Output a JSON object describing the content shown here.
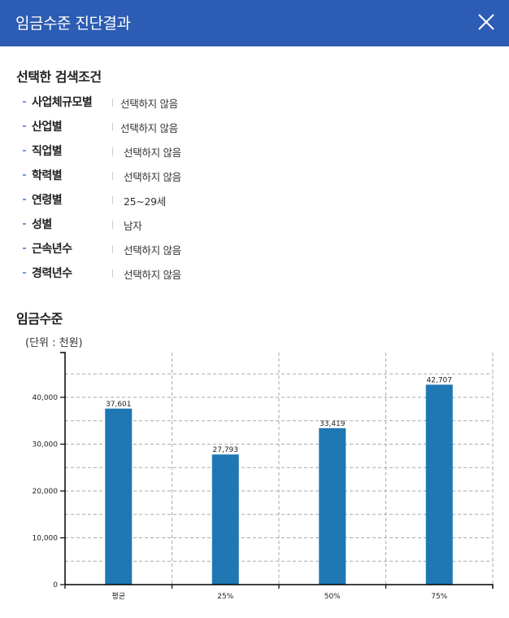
{
  "header": {
    "title": "임금수준 진단결과",
    "close_icon": "close-icon"
  },
  "conditions": {
    "title": "선택한 검색조건",
    "items": [
      {
        "label": "사업체규모별",
        "value": "선택하지 않음"
      },
      {
        "label": "산업별",
        "value": "선택하지 않음"
      },
      {
        "label": "직업별",
        "value": "선택하지 않음"
      },
      {
        "label": "학력별",
        "value": "선택하지 않음"
      },
      {
        "label": "연령별",
        "value": "25~29세"
      },
      {
        "label": "성별",
        "value": "남자"
      },
      {
        "label": "근속년수",
        "value": "선택하지 않음"
      },
      {
        "label": "경력년수",
        "value": "선택하지 않음"
      }
    ]
  },
  "wage": {
    "title": "임금수준",
    "unit": "(단위 : 천원)"
  },
  "colors": {
    "header": "#2c5cb3",
    "bar": "#1f77b4"
  },
  "chart_data": {
    "type": "bar",
    "title": "임금수준",
    "ylabel": "(단위 : 천원)",
    "xlabel": "",
    "categories": [
      "평균",
      "25%",
      "50%",
      "75%"
    ],
    "values": [
      37601,
      27793,
      33419,
      42707
    ],
    "value_labels": [
      "37,601",
      "27,793",
      "33,419",
      "42,707"
    ],
    "yticks": [
      0,
      10000,
      20000,
      30000,
      40000
    ],
    "ytick_labels": [
      "0",
      "10,000",
      "20,000",
      "30,000",
      "40,000"
    ],
    "ylim": [
      0,
      49600
    ],
    "grid": true,
    "grid_style": "dashed",
    "legend": "none"
  }
}
